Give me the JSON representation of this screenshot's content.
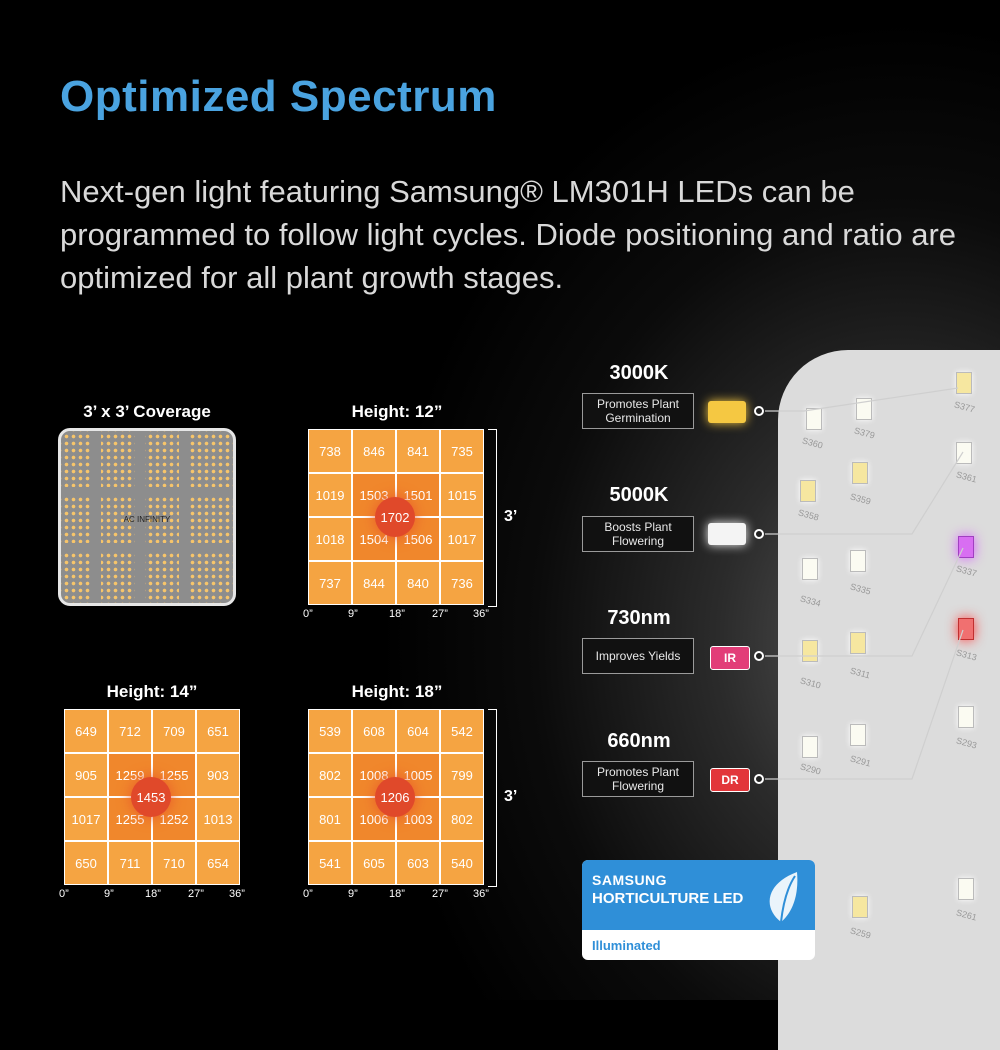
{
  "title": "Optimized Spectrum",
  "intro": "Next-gen light featuring Samsung® LM301H LEDs can be programmed to follow light cycles. Diode positioning and ratio are optimized for all plant growth stages.",
  "coverage": {
    "title": "3’ x 3’ Coverage",
    "logo": "AC INFINITY"
  },
  "ppfd_charts": [
    {
      "title": "Height: 12”",
      "peak": "1702",
      "rows": [
        [
          "738",
          "846",
          "841",
          "735"
        ],
        [
          "1019",
          "1503",
          "1501",
          "1015"
        ],
        [
          "1018",
          "1504",
          "1506",
          "1017"
        ],
        [
          "737",
          "844",
          "840",
          "736"
        ]
      ],
      "x_ticks": [
        "0”",
        "9”",
        "18”",
        "27”",
        "36”"
      ],
      "side_label": "3’"
    },
    {
      "title": "Height: 14”",
      "peak": "1453",
      "rows": [
        [
          "649",
          "712",
          "709",
          "651"
        ],
        [
          "905",
          "1259",
          "1255",
          "903"
        ],
        [
          "1017",
          "1255",
          "1252",
          "1013"
        ],
        [
          "650",
          "711",
          "710",
          "654"
        ]
      ],
      "x_ticks": [
        "0”",
        "9”",
        "18”",
        "27”",
        "36”"
      ],
      "side_label": ""
    },
    {
      "title": "Height: 18”",
      "peak": "1206",
      "rows": [
        [
          "539",
          "608",
          "604",
          "542"
        ],
        [
          "802",
          "1008",
          "1005",
          "799"
        ],
        [
          "801",
          "1006",
          "1003",
          "802"
        ],
        [
          "541",
          "605",
          "603",
          "540"
        ]
      ],
      "x_ticks": [
        "0”",
        "9”",
        "18”",
        "27”",
        "36”"
      ],
      "side_label": "3’"
    }
  ],
  "spectrum": [
    {
      "head": "3000K",
      "desc": "Promotes Plant Germination",
      "chip_text": "",
      "chip_color": "#f5c842"
    },
    {
      "head": "5000K",
      "desc": "Boosts Plant Flowering",
      "chip_text": "",
      "chip_color": "#f4f4f4"
    },
    {
      "head": "730nm",
      "desc": "Improves Yields",
      "chip_text": "IR",
      "chip_color": "#e23d78"
    },
    {
      "head": "660nm",
      "desc": "Promotes Plant Flowering",
      "chip_text": "DR",
      "chip_color": "#e2363a"
    }
  ],
  "led_labels": [
    "S377",
    "S379",
    "S360",
    "S361",
    "S359",
    "S358",
    "S337",
    "S335",
    "S334",
    "S313",
    "S311",
    "S310",
    "S293",
    "S291",
    "S290",
    "S261",
    "S259"
  ],
  "badge": {
    "brand": "SAMSUNG",
    "subtitle": "HORTICULTURE LED",
    "footer": "Illuminated"
  },
  "colors": {
    "title": "#4aa3e0",
    "grid_outer": "#f5a442",
    "grid_inner": "#f0872c",
    "peak": "#e0492a",
    "badge": "#2f8fd8"
  }
}
